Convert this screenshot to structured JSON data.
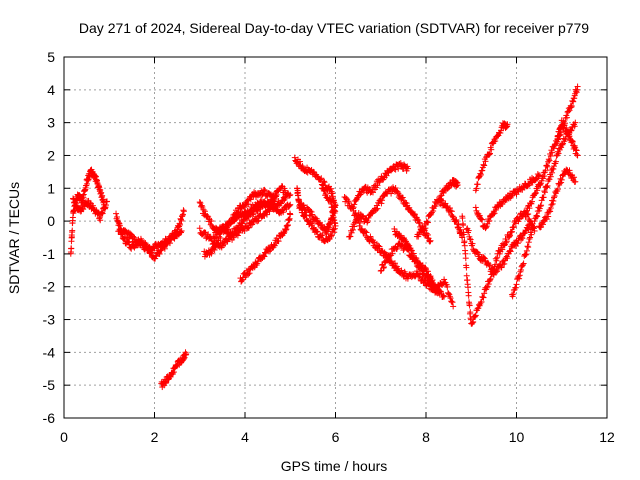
{
  "chart_data": {
    "type": "scatter",
    "title": "Day 271 of 2024, Sidereal Day-to-day VTEC variation (SDTVAR) for receiver p779",
    "xlabel": "GPS time / hours",
    "ylabel": "SDTVAR / TECUs",
    "xlim": [
      0,
      12
    ],
    "ylim": [
      -6,
      5
    ],
    "xticks": [
      0,
      2,
      4,
      6,
      8,
      10,
      12
    ],
    "yticks": [
      -6,
      -5,
      -4,
      -3,
      -2,
      -1,
      0,
      1,
      2,
      3,
      4,
      5
    ],
    "grid": true,
    "marker": "+",
    "color": "#ff0000",
    "series": [
      {
        "name": "SDTVAR",
        "tracks": [
          [
            [
              0.15,
              -1.0
            ],
            [
              0.2,
              0.2
            ],
            [
              0.3,
              0.8
            ],
            [
              0.4,
              0.6
            ],
            [
              0.5,
              1.2
            ],
            [
              0.6,
              1.5
            ],
            [
              0.7,
              1.3
            ],
            [
              0.8,
              0.9
            ],
            [
              0.9,
              0.4
            ]
          ],
          [
            [
              0.2,
              0.6
            ],
            [
              0.35,
              0.3
            ],
            [
              0.5,
              0.6
            ],
            [
              0.65,
              0.4
            ],
            [
              0.8,
              0.1
            ],
            [
              0.95,
              0.6
            ]
          ],
          [
            [
              1.15,
              0.2
            ],
            [
              1.3,
              -0.5
            ],
            [
              1.5,
              -0.8
            ],
            [
              1.7,
              -0.6
            ],
            [
              1.9,
              -0.9
            ],
            [
              2.1,
              -0.7
            ],
            [
              2.3,
              -0.6
            ],
            [
              2.5,
              -0.3
            ],
            [
              2.65,
              0.3
            ]
          ],
          [
            [
              1.2,
              -0.3
            ],
            [
              1.4,
              -0.4
            ],
            [
              1.6,
              -0.6
            ],
            [
              1.8,
              -0.8
            ],
            [
              2.0,
              -1.1
            ],
            [
              2.2,
              -0.8
            ],
            [
              2.4,
              -0.5
            ],
            [
              2.6,
              -0.3
            ]
          ],
          [
            [
              2.15,
              -5.0
            ],
            [
              2.3,
              -4.8
            ],
            [
              2.45,
              -4.5
            ],
            [
              2.6,
              -4.2
            ],
            [
              2.7,
              -4.05
            ]
          ],
          [
            [
              3.0,
              0.5
            ],
            [
              3.2,
              0.0
            ],
            [
              3.4,
              -0.3
            ],
            [
              3.6,
              -0.2
            ],
            [
              3.8,
              0.3
            ],
            [
              4.0,
              0.5
            ],
            [
              4.2,
              0.8
            ],
            [
              4.4,
              0.9
            ],
            [
              4.6,
              0.7
            ],
            [
              4.8,
              1.0
            ],
            [
              5.0,
              0.8
            ]
          ],
          [
            [
              3.0,
              -0.3
            ],
            [
              3.2,
              -0.5
            ],
            [
              3.4,
              -0.8
            ],
            [
              3.6,
              -0.6
            ],
            [
              3.8,
              -0.4
            ],
            [
              4.0,
              -0.2
            ],
            [
              4.2,
              0.0
            ],
            [
              4.4,
              0.2
            ],
            [
              4.6,
              0.4
            ],
            [
              4.8,
              0.3
            ],
            [
              5.0,
              0.5
            ]
          ],
          [
            [
              3.1,
              -1.0
            ],
            [
              3.3,
              -0.9
            ],
            [
              3.5,
              -0.3
            ],
            [
              3.7,
              0.0
            ],
            [
              3.9,
              0.2
            ],
            [
              4.1,
              0.3
            ],
            [
              4.3,
              0.6
            ],
            [
              4.5,
              0.5
            ],
            [
              4.7,
              0.8
            ]
          ],
          [
            [
              3.9,
              -1.8
            ],
            [
              4.1,
              -1.5
            ],
            [
              4.3,
              -1.2
            ],
            [
              4.5,
              -0.9
            ],
            [
              4.7,
              -0.6
            ],
            [
              4.9,
              -0.3
            ],
            [
              5.0,
              0.2
            ]
          ],
          [
            [
              3.3,
              -0.5
            ],
            [
              3.5,
              -0.2
            ],
            [
              3.7,
              -0.4
            ],
            [
              3.9,
              -0.1
            ],
            [
              4.1,
              0.2
            ],
            [
              4.3,
              0.4
            ],
            [
              4.5,
              0.6
            ],
            [
              4.7,
              0.5
            ],
            [
              4.9,
              0.7
            ]
          ],
          [
            [
              5.1,
              1.9
            ],
            [
              5.3,
              1.6
            ],
            [
              5.5,
              1.5
            ],
            [
              5.7,
              1.2
            ],
            [
              5.9,
              0.9
            ],
            [
              6.0,
              0.4
            ],
            [
              5.9,
              0.0
            ],
            [
              5.8,
              -0.3
            ],
            [
              5.6,
              0.0
            ],
            [
              5.4,
              0.3
            ],
            [
              5.2,
              0.5
            ],
            [
              5.15,
              1.0
            ]
          ],
          [
            [
              5.2,
              0.4
            ],
            [
              5.4,
              0.0
            ],
            [
              5.6,
              -0.4
            ],
            [
              5.8,
              -0.6
            ],
            [
              6.0,
              -0.2
            ],
            [
              5.9,
              0.6
            ],
            [
              5.7,
              1.0
            ]
          ],
          [
            [
              6.2,
              0.7
            ],
            [
              6.4,
              0.3
            ],
            [
              6.6,
              -0.3
            ],
            [
              6.8,
              -0.6
            ],
            [
              7.0,
              -0.9
            ],
            [
              7.2,
              -1.2
            ],
            [
              7.4,
              -1.5
            ],
            [
              7.6,
              -1.7
            ],
            [
              7.8,
              -1.6
            ],
            [
              8.0,
              -1.9
            ],
            [
              8.2,
              -2.1
            ],
            [
              8.4,
              -1.8
            ],
            [
              8.6,
              -2.6
            ]
          ],
          [
            [
              6.4,
              0.5
            ],
            [
              6.6,
              1.0
            ],
            [
              6.8,
              0.9
            ],
            [
              7.0,
              1.3
            ],
            [
              7.2,
              1.5
            ],
            [
              7.4,
              1.7
            ],
            [
              7.6,
              1.6
            ]
          ],
          [
            [
              6.3,
              -0.5
            ],
            [
              6.5,
              0.2
            ],
            [
              6.7,
              0.0
            ],
            [
              6.9,
              0.4
            ],
            [
              7.1,
              0.8
            ],
            [
              7.3,
              1.0
            ],
            [
              7.5,
              0.6
            ],
            [
              7.7,
              0.3
            ],
            [
              7.9,
              -0.2
            ],
            [
              8.1,
              -0.6
            ]
          ],
          [
            [
              7.0,
              -1.5
            ],
            [
              7.2,
              -1.0
            ],
            [
              7.4,
              -0.7
            ],
            [
              7.6,
              -0.9
            ],
            [
              7.8,
              -1.3
            ],
            [
              8.0,
              -1.5
            ],
            [
              8.2,
              -2.0
            ],
            [
              8.4,
              -2.3
            ]
          ],
          [
            [
              7.3,
              -0.3
            ],
            [
              7.5,
              -0.5
            ],
            [
              7.7,
              -1.0
            ],
            [
              7.9,
              -1.5
            ],
            [
              8.1,
              -1.9
            ],
            [
              8.3,
              -2.2
            ]
          ],
          [
            [
              7.8,
              -0.5
            ],
            [
              8.0,
              -0.1
            ],
            [
              8.2,
              0.5
            ],
            [
              8.4,
              0.9
            ],
            [
              8.6,
              1.2
            ],
            [
              8.7,
              1.1
            ]
          ],
          [
            [
              8.3,
              0.6
            ],
            [
              8.5,
              0.4
            ],
            [
              8.7,
              -0.1
            ],
            [
              8.8,
              -0.5
            ]
          ],
          [
            [
              8.8,
              0.2
            ],
            [
              8.9,
              -1.6
            ],
            [
              9.0,
              -3.2
            ],
            [
              9.2,
              -2.5
            ],
            [
              9.4,
              -1.8
            ],
            [
              9.6,
              -1.0
            ],
            [
              9.8,
              -0.5
            ],
            [
              10.0,
              0.0
            ],
            [
              10.2,
              0.3
            ],
            [
              10.4,
              -0.3
            ]
          ],
          [
            [
              8.9,
              -0.2
            ],
            [
              9.1,
              -1.0
            ],
            [
              9.3,
              -1.2
            ],
            [
              9.5,
              -1.6
            ],
            [
              9.7,
              -1.3
            ],
            [
              9.9,
              -0.8
            ],
            [
              10.1,
              -0.5
            ],
            [
              10.3,
              -0.1
            ]
          ],
          [
            [
              9.1,
              0.4
            ],
            [
              9.3,
              -0.2
            ],
            [
              9.5,
              0.3
            ],
            [
              9.7,
              0.6
            ],
            [
              9.9,
              0.8
            ],
            [
              10.1,
              1.0
            ],
            [
              10.3,
              1.2
            ],
            [
              10.5,
              1.4
            ]
          ],
          [
            [
              9.1,
              1.0
            ],
            [
              9.3,
              1.8
            ],
            [
              9.5,
              2.4
            ],
            [
              9.7,
              2.9
            ],
            [
              9.8,
              2.95
            ]
          ],
          [
            [
              9.9,
              -2.3
            ],
            [
              10.1,
              -1.5
            ],
            [
              10.3,
              -0.5
            ],
            [
              10.5,
              0.4
            ],
            [
              10.7,
              1.2
            ],
            [
              10.9,
              2.0
            ],
            [
              11.1,
              2.6
            ],
            [
              11.3,
              3.0
            ]
          ],
          [
            [
              10.2,
              0.2
            ],
            [
              10.4,
              0.8
            ],
            [
              10.6,
              1.4
            ],
            [
              10.8,
              2.2
            ],
            [
              11.0,
              2.8
            ],
            [
              11.2,
              3.5
            ],
            [
              11.35,
              4.1
            ]
          ],
          [
            [
              10.5,
              -0.2
            ],
            [
              10.7,
              0.2
            ],
            [
              10.9,
              1.0
            ],
            [
              11.1,
              1.6
            ],
            [
              11.3,
              1.2
            ]
          ],
          [
            [
              10.9,
              2.5
            ],
            [
              11.0,
              3.0
            ],
            [
              11.2,
              2.5
            ],
            [
              11.35,
              2.0
            ]
          ]
        ]
      }
    ]
  }
}
